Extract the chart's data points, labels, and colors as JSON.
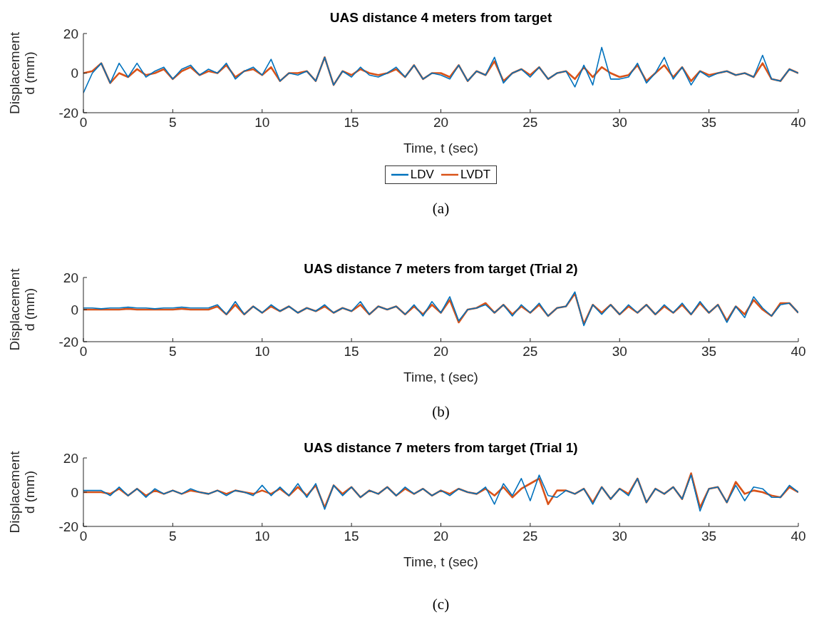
{
  "chart_data": [
    {
      "type": "line",
      "title": "UAS distance 4 meters from target",
      "xlabel": "Time, t (sec)",
      "ylabel": "Displacement d (mm)",
      "xlim": [
        0,
        40
      ],
      "xticks": [
        0,
        5,
        10,
        15,
        20,
        25,
        30,
        35,
        40
      ],
      "ylim": [
        -20,
        20
      ],
      "yticks": [
        -20,
        0,
        20
      ],
      "grid": false,
      "legend": "bottom",
      "annotations": [
        "(a)"
      ],
      "x": [
        0,
        0.5,
        1,
        1.5,
        2,
        2.5,
        3,
        3.5,
        4,
        4.5,
        5,
        5.5,
        6,
        6.5,
        7,
        7.5,
        8,
        8.5,
        9,
        9.5,
        10,
        10.5,
        11,
        11.5,
        12,
        12.5,
        13,
        13.5,
        14,
        14.5,
        15,
        15.5,
        16,
        16.5,
        17,
        17.5,
        18,
        18.5,
        19,
        19.5,
        20,
        20.5,
        21,
        21.5,
        22,
        22.5,
        23,
        23.5,
        24,
        24.5,
        25,
        25.5,
        26,
        26.5,
        27,
        27.5,
        28,
        28.5,
        29,
        29.5,
        30,
        30.5,
        31,
        31.5,
        32,
        32.5,
        33,
        33.5,
        34,
        34.5,
        35,
        35.5,
        36,
        36.5,
        37,
        37.5,
        38,
        38.5,
        39,
        39.5,
        40
      ],
      "series": [
        {
          "name": "LDV",
          "color": "#0072bd",
          "values": [
            -10,
            0,
            5,
            -5,
            5,
            -2,
            5,
            -2,
            1,
            3,
            -3,
            2,
            4,
            -1,
            2,
            0,
            5,
            -3,
            1,
            3,
            -1,
            7,
            -4,
            0,
            -1,
            1,
            -4,
            8,
            -6,
            1,
            -2,
            3,
            -1,
            -2,
            0,
            3,
            -2,
            4,
            -3,
            0,
            -1,
            -3,
            4,
            -4,
            1,
            -1,
            8,
            -5,
            0,
            2,
            -2,
            3,
            -3,
            0,
            1,
            -7,
            4,
            -6,
            13,
            -3,
            -3,
            -2,
            5,
            -5,
            0,
            8,
            -3,
            3,
            -6,
            1,
            -2,
            0,
            1,
            -1,
            0,
            -2,
            9,
            -3,
            -4,
            2,
            0
          ]
        },
        {
          "name": "LVDT",
          "color": "#d95319",
          "values": [
            0,
            1,
            5,
            -5,
            0,
            -2,
            2,
            -1,
            0,
            2,
            -3,
            1,
            3,
            -1,
            1,
            0,
            4,
            -2,
            1,
            2,
            -1,
            3,
            -4,
            0,
            0,
            1,
            -4,
            8,
            -6,
            1,
            -1,
            2,
            0,
            -1,
            0,
            2,
            -2,
            4,
            -3,
            0,
            0,
            -2,
            4,
            -4,
            1,
            -1,
            6,
            -4,
            0,
            2,
            -1,
            3,
            -3,
            0,
            1,
            -3,
            3,
            -2,
            3,
            0,
            -2,
            -1,
            4,
            -4,
            0,
            4,
            -2,
            3,
            -4,
            1,
            -1,
            0,
            1,
            -1,
            0,
            -2,
            5,
            -3,
            -4,
            2,
            0
          ]
        }
      ]
    },
    {
      "type": "line",
      "title": "UAS distance 7 meters from target (Trial 2)",
      "xlabel": "Time, t (sec)",
      "ylabel": "Displacement d (mm)",
      "xlim": [
        0,
        40
      ],
      "xticks": [
        0,
        5,
        10,
        15,
        20,
        25,
        30,
        35,
        40
      ],
      "ylim": [
        -20,
        20
      ],
      "yticks": [
        -20,
        0,
        20
      ],
      "grid": false,
      "annotations": [
        "(b)"
      ],
      "x": [
        0,
        0.5,
        1,
        1.5,
        2,
        2.5,
        3,
        3.5,
        4,
        4.5,
        5,
        5.5,
        6,
        6.5,
        7,
        7.5,
        8,
        8.5,
        9,
        9.5,
        10,
        10.5,
        11,
        11.5,
        12,
        12.5,
        13,
        13.5,
        14,
        14.5,
        15,
        15.5,
        16,
        16.5,
        17,
        17.5,
        18,
        18.5,
        19,
        19.5,
        20,
        20.5,
        21,
        21.5,
        22,
        22.5,
        23,
        23.5,
        24,
        24.5,
        25,
        25.5,
        26,
        26.5,
        27,
        27.5,
        28,
        28.5,
        29,
        29.5,
        30,
        30.5,
        31,
        31.5,
        32,
        32.5,
        33,
        33.5,
        34,
        34.5,
        35,
        35.5,
        36,
        36.5,
        37,
        37.5,
        38,
        38.5,
        39,
        39.5,
        40
      ],
      "series": [
        {
          "color": "#0072bd",
          "values": [
            1,
            1,
            0.5,
            1,
            1,
            1.5,
            1,
            1,
            0.5,
            1,
            1,
            1.5,
            1,
            1,
            1,
            3,
            -3,
            5,
            -3,
            2,
            -2,
            3,
            -1,
            2,
            -2,
            1,
            -1,
            3,
            -2,
            1,
            -1,
            5,
            -3,
            2,
            0,
            2,
            -3,
            3,
            -4,
            5,
            -2,
            8,
            -7,
            0,
            1,
            3,
            -2,
            3,
            -4,
            3,
            -2,
            4,
            -4,
            1,
            2,
            11,
            -10,
            3,
            -3,
            3,
            -3,
            3,
            -2,
            3,
            -3,
            3,
            -2,
            4,
            -3,
            5,
            -2,
            3,
            -8,
            2,
            -5,
            8,
            1,
            -4,
            3,
            4,
            -2
          ]
        },
        {
          "color": "#d95319",
          "values": [
            0,
            0,
            0,
            0,
            0,
            0.5,
            0,
            0,
            0,
            0,
            0,
            0.5,
            0,
            0,
            0,
            2,
            -3,
            3,
            -3,
            2,
            -2,
            2,
            -1,
            2,
            -2,
            1,
            -1,
            2,
            -2,
            1,
            -1,
            3,
            -3,
            2,
            0,
            2,
            -3,
            2,
            -3,
            3,
            -2,
            6,
            -8,
            0,
            1,
            4,
            -2,
            3,
            -3,
            2,
            -2,
            3,
            -4,
            1,
            2,
            10,
            -9,
            3,
            -2,
            3,
            -3,
            2,
            -2,
            3,
            -3,
            2,
            -2,
            3,
            -3,
            4,
            -2,
            3,
            -7,
            2,
            -3,
            6,
            0,
            -4,
            4,
            4,
            -2
          ]
        }
      ]
    },
    {
      "type": "line",
      "title": "UAS distance 7 meters from target (Trial 1)",
      "xlabel": "Time, t (sec)",
      "ylabel": "Displacement d (mm)",
      "xlim": [
        0,
        40
      ],
      "xticks": [
        0,
        5,
        10,
        15,
        20,
        25,
        30,
        35,
        40
      ],
      "ylim": [
        -20,
        20
      ],
      "yticks": [
        -20,
        0,
        20
      ],
      "grid": false,
      "annotations": [
        "(c)"
      ],
      "x": [
        0,
        0.5,
        1,
        1.5,
        2,
        2.5,
        3,
        3.5,
        4,
        4.5,
        5,
        5.5,
        6,
        6.5,
        7,
        7.5,
        8,
        8.5,
        9,
        9.5,
        10,
        10.5,
        11,
        11.5,
        12,
        12.5,
        13,
        13.5,
        14,
        14.5,
        15,
        15.5,
        16,
        16.5,
        17,
        17.5,
        18,
        18.5,
        19,
        19.5,
        20,
        20.5,
        21,
        21.5,
        22,
        22.5,
        23,
        23.5,
        24,
        24.5,
        25,
        25.5,
        26,
        26.5,
        27,
        27.5,
        28,
        28.5,
        29,
        29.5,
        30,
        30.5,
        31,
        31.5,
        32,
        32.5,
        33,
        33.5,
        34,
        34.5,
        35,
        35.5,
        36,
        36.5,
        37,
        37.5,
        38,
        38.5,
        39,
        39.5,
        40
      ],
      "series": [
        {
          "color": "#0072bd",
          "values": [
            1,
            1,
            1,
            -2,
            3,
            -2,
            2,
            -3,
            2,
            -1,
            1,
            -1,
            2,
            0,
            -1,
            1,
            -2,
            1,
            0,
            -2,
            4,
            -2,
            3,
            -2,
            5,
            -3,
            5,
            -10,
            4,
            -2,
            3,
            -3,
            1,
            -1,
            3,
            -2,
            3,
            -1,
            2,
            -2,
            1,
            -2,
            2,
            0,
            -1,
            3,
            -7,
            5,
            -2,
            8,
            -5,
            10,
            -2,
            -3,
            1,
            -1,
            2,
            -7,
            3,
            -4,
            2,
            -2,
            8,
            -6,
            2,
            -1,
            3,
            -4,
            10,
            -11,
            2,
            3,
            -6,
            4,
            -5,
            3,
            2,
            -3,
            -3,
            4,
            0
          ]
        },
        {
          "color": "#d95319",
          "values": [
            0,
            0,
            0,
            -1,
            2,
            -2,
            2,
            -2,
            1,
            -1,
            1,
            -1,
            1,
            0,
            -1,
            1,
            -1,
            1,
            0,
            -1,
            1,
            -1,
            2,
            -2,
            3,
            -2,
            4,
            -9,
            4,
            -1,
            3,
            -3,
            1,
            -1,
            3,
            -2,
            2,
            -1,
            2,
            -2,
            1,
            -1,
            2,
            0,
            -1,
            2,
            -2,
            3,
            -3,
            2,
            5,
            8,
            -7,
            1,
            1,
            -1,
            2,
            -6,
            3,
            -4,
            2,
            -1,
            8,
            -6,
            2,
            -1,
            3,
            -4,
            11,
            -9,
            2,
            3,
            -6,
            6,
            -1,
            1,
            0,
            -2,
            -3,
            3,
            0
          ]
        }
      ]
    }
  ]
}
